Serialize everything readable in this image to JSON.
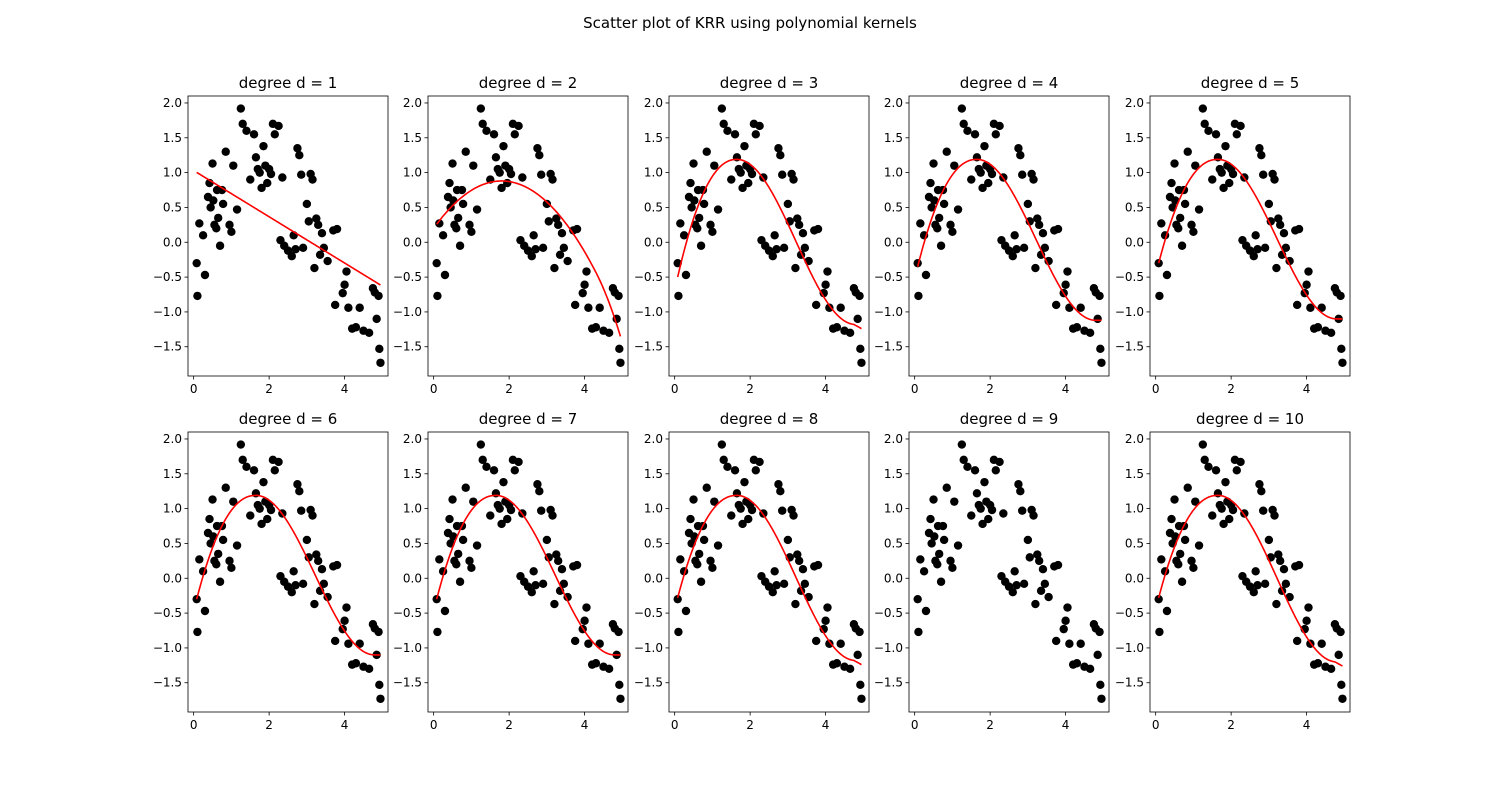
{
  "figure": {
    "title": "Scatter plot of KRR using polynomial kernels"
  },
  "chart_data": {
    "type": "scatter",
    "xlim": [
      -0.15,
      5.15
    ],
    "ylim": [
      -1.92,
      2.1
    ],
    "xticks": [
      0,
      2,
      4
    ],
    "xtick_labels": [
      "0",
      "2",
      "4"
    ],
    "yticks": [
      -1.5,
      -1.0,
      -0.5,
      0.0,
      0.5,
      1.0,
      1.5,
      2.0
    ],
    "ytick_labels": [
      "−1.5",
      "−1.0",
      "−0.5",
      "0.0",
      "0.5",
      "1.0",
      "1.5",
      "2.0"
    ],
    "grid": false,
    "points": {
      "x": [
        0.08,
        0.1,
        0.15,
        0.25,
        0.3,
        0.38,
        0.42,
        0.45,
        0.5,
        0.52,
        0.55,
        0.6,
        0.62,
        0.65,
        0.7,
        0.75,
        0.78,
        0.85,
        0.95,
        1.0,
        1.05,
        1.15,
        1.25,
        1.3,
        1.4,
        1.5,
        1.6,
        1.65,
        1.7,
        1.75,
        1.8,
        1.85,
        1.9,
        1.95,
        2.0,
        2.05,
        2.1,
        2.15,
        2.25,
        2.3,
        2.35,
        2.4,
        2.5,
        2.6,
        2.65,
        2.7,
        2.75,
        2.8,
        2.85,
        2.9,
        3.0,
        3.05,
        3.1,
        3.15,
        3.2,
        3.25,
        3.3,
        3.35,
        3.4,
        3.45,
        3.55,
        3.7,
        3.75,
        3.8,
        3.95,
        4.0,
        4.05,
        4.1,
        4.2,
        4.3,
        4.4,
        4.5,
        4.65,
        4.75,
        4.8,
        4.85,
        4.9,
        4.92,
        4.95
      ],
      "y": [
        -0.3,
        -0.77,
        0.27,
        0.1,
        -0.47,
        0.65,
        0.85,
        0.5,
        1.13,
        0.6,
        0.25,
        0.2,
        0.75,
        0.35,
        -0.05,
        0.75,
        0.55,
        1.3,
        0.25,
        0.15,
        1.1,
        0.47,
        1.92,
        1.7,
        1.6,
        0.9,
        1.55,
        1.22,
        1.05,
        1.0,
        0.78,
        1.38,
        1.1,
        0.85,
        1.05,
        0.98,
        1.7,
        1.55,
        1.67,
        0.03,
        0.93,
        -0.05,
        -0.12,
        -0.2,
        0.1,
        -0.1,
        1.35,
        1.25,
        0.97,
        -0.08,
        0.55,
        0.3,
        0.98,
        0.9,
        -0.37,
        0.34,
        0.25,
        -0.18,
        0.13,
        -0.08,
        -0.27,
        0.17,
        -0.9,
        0.19,
        -0.73,
        -0.61,
        -0.42,
        -0.94,
        -1.24,
        -1.22,
        -0.94,
        -1.27,
        -1.3,
        -0.66,
        -0.72,
        -1.1,
        -0.77,
        -1.53,
        -1.73
      ]
    },
    "panels": [
      {
        "title": "degree d = 1",
        "fit": "line"
      },
      {
        "title": "degree d = 2",
        "fit": "quad"
      },
      {
        "title": "degree d = 3",
        "fit": "bump",
        "endDip": true,
        "startY": -0.5,
        "endY": -1.18
      },
      {
        "title": "degree d = 4",
        "fit": "bump",
        "endDip": false,
        "startY": -0.35,
        "endY": -1.12
      },
      {
        "title": "degree d = 5",
        "fit": "bump",
        "endDip": false,
        "startY": -0.3,
        "endY": -1.1
      },
      {
        "title": "degree d = 6",
        "fit": "bump",
        "endDip": false,
        "startY": -0.3,
        "endY": -1.1
      },
      {
        "title": "degree d = 7",
        "fit": "bump",
        "endDip": false,
        "startY": -0.3,
        "endY": -1.1
      },
      {
        "title": "degree d = 8",
        "fit": "bump",
        "endDip": true,
        "startY": -0.28,
        "endY": -1.18
      },
      {
        "title": "degree d = 9",
        "fit": "wiggly"
      },
      {
        "title": "degree d = 10",
        "fit": "bump",
        "endDip": true,
        "startY": -0.28,
        "endY": -1.2
      }
    ],
    "colors": {
      "points": "#000000",
      "fit": "#ff0000"
    }
  }
}
